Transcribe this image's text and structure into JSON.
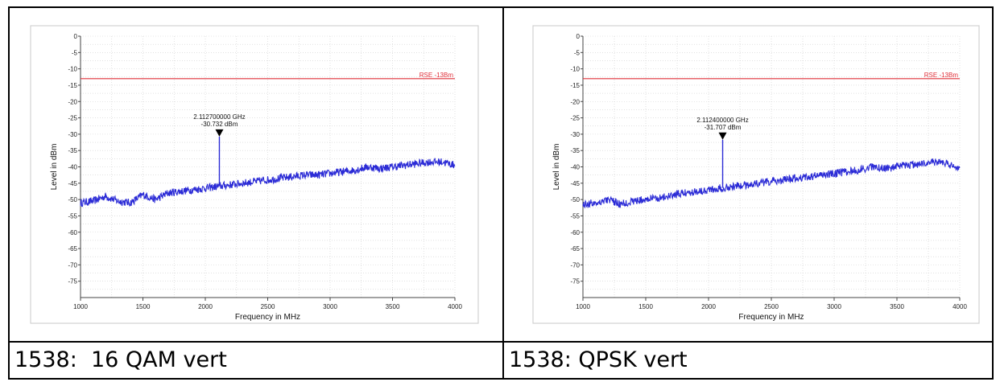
{
  "charts": [
    {
      "caption": "1538:  16 QAM vert",
      "chart_data": {
        "type": "line",
        "title": "",
        "xlabel": "Frequency in MHz",
        "ylabel": "Level in dBm",
        "xlim": [
          1000,
          4000
        ],
        "ylim": [
          -80,
          0
        ],
        "x_ticks": [
          1000,
          1500,
          2000,
          2500,
          3000,
          3500,
          4000
        ],
        "y_ticks": [
          0,
          -5,
          -10,
          -15,
          -20,
          -25,
          -30,
          -35,
          -40,
          -45,
          -50,
          -55,
          -60,
          -65,
          -70,
          -75
        ],
        "grid": true,
        "limit_line": {
          "label": "RSE -13Bm",
          "value": -13,
          "color": "#e0303a"
        },
        "marker": {
          "x": 2112.7,
          "y": -30.732,
          "label_freq": "2.112700000 GHz",
          "label_level": "-30.732 dBm"
        },
        "series": [
          {
            "color": "#2b2bd6",
            "x": [
              1000,
              1100,
              1200,
              1300,
              1400,
              1500,
              1600,
              1700,
              1800,
              1900,
              2000,
              2100,
              2200,
              2300,
              2400,
              2500,
              2600,
              2700,
              2800,
              2900,
              3000,
              3100,
              3200,
              3300,
              3400,
              3500,
              3600,
              3700,
              3800,
              3900,
              4000
            ],
            "y": [
              -51,
              -50.5,
              -49,
              -50.5,
              -51,
              -48.5,
              -50,
              -48,
              -47.5,
              -47,
              -46.5,
              -46,
              -45.5,
              -45,
              -44.5,
              -44,
              -43.5,
              -43,
              -42.5,
              -42.5,
              -42,
              -41.5,
              -41,
              -40,
              -40.5,
              -40,
              -39.5,
              -39,
              -38.5,
              -38.5,
              -39.5
            ]
          }
        ]
      }
    },
    {
      "caption": "1538: QPSK vert",
      "chart_data": {
        "type": "line",
        "title": "",
        "xlabel": "Frequency in MHz",
        "ylabel": "Level in dBm",
        "xlim": [
          1000,
          4000
        ],
        "ylim": [
          -80,
          0
        ],
        "x_ticks": [
          1000,
          1500,
          2000,
          2500,
          3000,
          3500,
          4000
        ],
        "y_ticks": [
          0,
          -5,
          -10,
          -15,
          -20,
          -25,
          -30,
          -35,
          -40,
          -45,
          -50,
          -55,
          -60,
          -65,
          -70,
          -75
        ],
        "grid": true,
        "limit_line": {
          "label": "RSE -13Bm",
          "value": -13,
          "color": "#e0303a"
        },
        "marker": {
          "x": 2112.4,
          "y": -31.707,
          "label_freq": "2.112400000 GHz",
          "label_level": "-31.707 dBm"
        },
        "series": [
          {
            "color": "#2b2bd6",
            "x": [
              1000,
              1100,
              1200,
              1300,
              1400,
              1500,
              1600,
              1700,
              1800,
              1900,
              2000,
              2100,
              2200,
              2300,
              2400,
              2500,
              2600,
              2700,
              2800,
              2900,
              3000,
              3100,
              3200,
              3300,
              3400,
              3500,
              3600,
              3700,
              3800,
              3900,
              4000
            ],
            "y": [
              -51.5,
              -51,
              -50,
              -51.5,
              -50.5,
              -50,
              -49.5,
              -49,
              -48,
              -47.5,
              -47,
              -46.5,
              -46,
              -45.5,
              -45,
              -44.5,
              -44,
              -43.5,
              -43,
              -42.5,
              -42,
              -41.5,
              -41,
              -40,
              -40.5,
              -40,
              -39.5,
              -39,
              -38.5,
              -39,
              -40.5
            ]
          }
        ]
      }
    }
  ]
}
